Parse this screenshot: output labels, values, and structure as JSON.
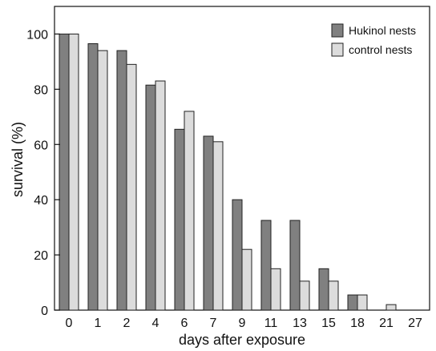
{
  "chart_data": {
    "type": "bar",
    "xlabel": "days after exposure",
    "ylabel": "survival (%)",
    "ylim": [
      0,
      110
    ],
    "yticks": [
      0,
      20,
      40,
      60,
      80,
      100
    ],
    "categories": [
      "0",
      "1",
      "2",
      "4",
      "6",
      "7",
      "9",
      "11",
      "13",
      "15",
      "18",
      "21",
      "27"
    ],
    "series": [
      {
        "name": "Hukinol nests",
        "color": "#808080",
        "values": [
          100,
          96.5,
          94,
          81.5,
          65.5,
          63,
          40,
          32.5,
          32.5,
          15,
          5.5,
          0,
          0
        ]
      },
      {
        "name": "control nests",
        "color": "#dcdcdc",
        "values": [
          100,
          94,
          89,
          83,
          72,
          61,
          22,
          15,
          10.5,
          10.5,
          5.5,
          2,
          0
        ]
      }
    ],
    "legend_position": "top-right",
    "grid": false
  }
}
